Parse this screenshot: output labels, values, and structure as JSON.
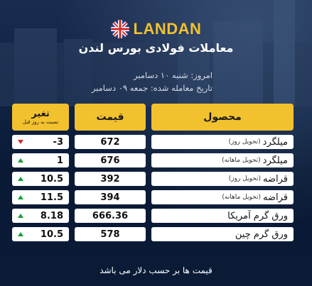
{
  "brand": "LANDAN",
  "title": "معاملات فولادی بورس لندن",
  "dates": {
    "today": "امروز: شنبه ۱۰ دسامبر",
    "last_trade": "تاریخ معامله شده: جمعه ۰۹ دسامبر"
  },
  "table": {
    "headers": {
      "product": "محصول",
      "price": "قیمت",
      "change": "تغیر",
      "change_sub": "نسبت به روز قبل"
    },
    "rows": [
      {
        "product": "میلگرد",
        "note": "(تحویل روز)",
        "price": "672",
        "change": "-3",
        "direction": "down"
      },
      {
        "product": "میلگرد",
        "note": "(تحویل ماهانه)",
        "price": "676",
        "change": "1",
        "direction": "up"
      },
      {
        "product": "قراضه",
        "note": "(تحویل روز)",
        "price": "392",
        "change": "10.5",
        "direction": "up"
      },
      {
        "product": "قراضه",
        "note": "(تحویل ماهانه)",
        "price": "394",
        "change": "11.5",
        "direction": "up"
      },
      {
        "product": "ورق گرم آمریکا",
        "note": "",
        "price": "666.36",
        "change": "8.18",
        "direction": "up"
      },
      {
        "product": "ورق گرم چین",
        "note": "",
        "price": "578",
        "change": "10.5",
        "direction": "up"
      }
    ]
  },
  "footer": "قیمت ها بر حسب دلار می باشد",
  "colors": {
    "accent": "#f2c12e",
    "background": "#0b1a33",
    "up": "#12a03a",
    "down": "#d62a2a"
  },
  "icons": {
    "flag": "uk-flag-icon",
    "up": "up-triangle-icon",
    "down": "down-triangle-icon"
  }
}
